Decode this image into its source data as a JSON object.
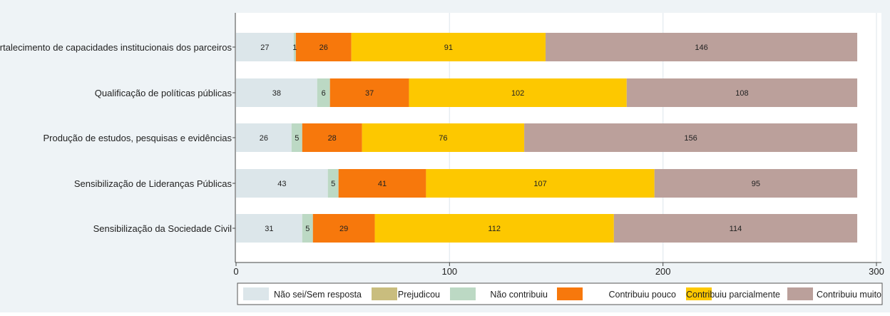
{
  "chart_data": {
    "type": "bar",
    "orientation": "horizontal",
    "stacked": true,
    "title": "",
    "xlabel": "",
    "ylabel": "",
    "xlim": [
      0,
      300
    ],
    "x_ticks": [
      0,
      100,
      200,
      300
    ],
    "grid": true,
    "legend_position": "bottom",
    "categories": [
      "Fortalecimento de capacidades institucionais dos parceiros",
      "Qualificação de políticas públicas",
      "Produção de estudos, pesquisas e evidências",
      "Sensibilização de Lideranças Públicas",
      "Sensibilização da Sociedade Civil"
    ],
    "series": [
      {
        "name": "Não sei/Sem resposta",
        "color": "#dce6ea",
        "values": [
          27,
          38,
          26,
          43,
          31
        ]
      },
      {
        "name": "Prejudicou",
        "color": "#c9bd7e",
        "values": [
          0,
          0,
          0,
          0,
          0
        ]
      },
      {
        "name": "Não contribuiu",
        "color": "#bcd9c4",
        "values": [
          1,
          6,
          5,
          5,
          5
        ]
      },
      {
        "name": "Contribuiu pouco",
        "color": "#f7780c",
        "values": [
          26,
          37,
          28,
          41,
          29
        ]
      },
      {
        "name": "Contribuiu parcialmente",
        "color": "#fdc800",
        "values": [
          91,
          102,
          76,
          107,
          112
        ]
      },
      {
        "name": "Contribuiu muito",
        "color": "#bba09b",
        "values": [
          146,
          108,
          156,
          95,
          114
        ]
      }
    ]
  }
}
